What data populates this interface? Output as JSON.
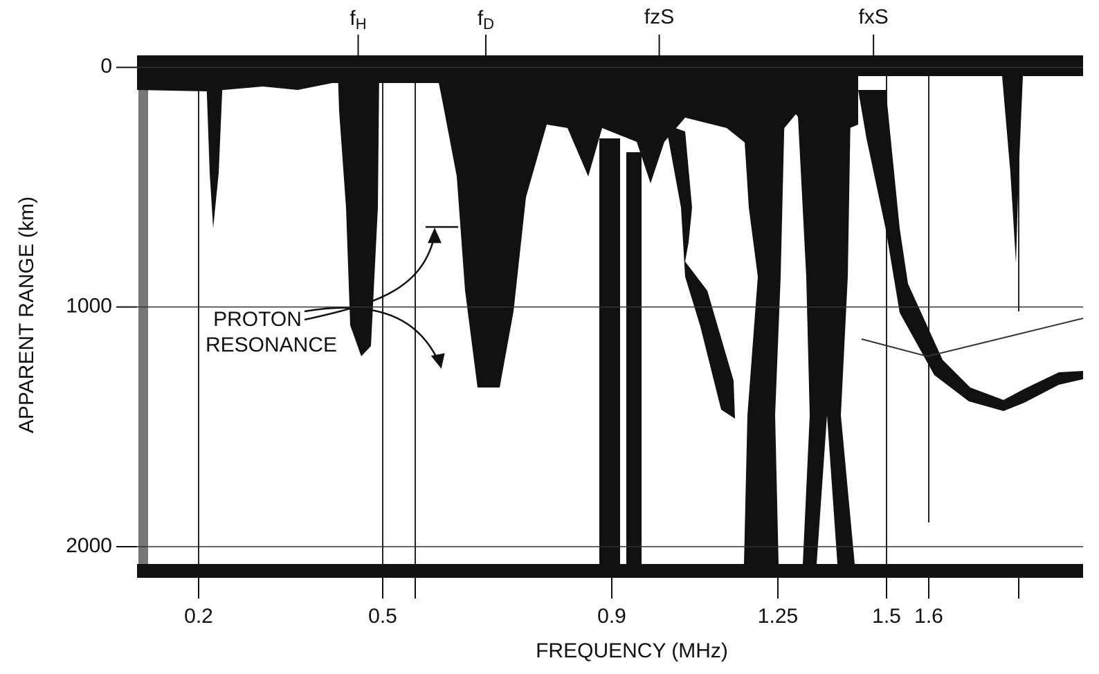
{
  "chart_data": {
    "type": "ionogram",
    "xlabel": "FREQUENCY (MHz)",
    "ylabel": "APPARENT RANGE (km)",
    "xticks": [
      0.2,
      0.5,
      0.9,
      1.25,
      1.5,
      1.6
    ],
    "ylim": [
      -50,
      2130
    ],
    "yticks": [
      0,
      1000,
      2000
    ],
    "markers": [
      {
        "base": "f",
        "sub": "H",
        "x": 0.46
      },
      {
        "base": "f",
        "sub": "D",
        "x": 0.68
      },
      {
        "label": "fzS",
        "x": 1.0
      },
      {
        "label": "fxS",
        "x": 1.47
      }
    ],
    "annotation": [
      "PROTON",
      "RESONANCE"
    ]
  }
}
